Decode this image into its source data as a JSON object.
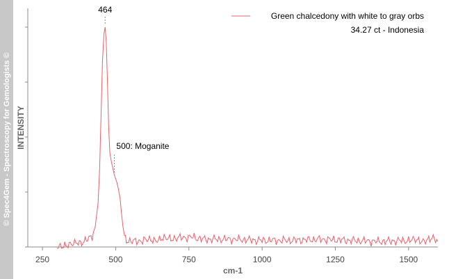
{
  "watermark": "© Spec4Gem - Spectroscopy for Gemologists ©",
  "chart_data": {
    "type": "line",
    "title": "",
    "xlabel": "cm-1",
    "ylabel": "INTENSITY",
    "xlim": [
      200,
      1600
    ],
    "ylim": [
      0,
      1
    ],
    "xticks": [
      250,
      500,
      750,
      1000,
      1250,
      1500
    ],
    "yticks": [
      0,
      0.25,
      0.5,
      0.75,
      1.0
    ],
    "ytick_labels_shown": false,
    "grid": false,
    "legend": {
      "placement": "top-right",
      "entries": [
        "Green chalcedony with white to gray orbs",
        "34.27 ct - Indonesia"
      ]
    },
    "series": [
      {
        "name": "Green chalcedony with white to gray orbs",
        "color": "#e8606a",
        "x": [
          300,
          330,
          360,
          380,
          400,
          420,
          430,
          440,
          445,
          450,
          455,
          460,
          464,
          468,
          472,
          476,
          480,
          485,
          490,
          495,
          500,
          505,
          510,
          515,
          520,
          525,
          530,
          540,
          560,
          600,
          650,
          700,
          760,
          800,
          900,
          1000,
          1100,
          1200,
          1300,
          1400,
          1500,
          1550,
          1580,
          1600
        ],
        "y": [
          0.005,
          0.01,
          0.015,
          0.02,
          0.03,
          0.05,
          0.09,
          0.2,
          0.35,
          0.6,
          0.85,
          0.97,
          1.0,
          0.93,
          0.75,
          0.55,
          0.43,
          0.39,
          0.36,
          0.33,
          0.31,
          0.29,
          0.26,
          0.22,
          0.15,
          0.09,
          0.05,
          0.03,
          0.025,
          0.03,
          0.035,
          0.04,
          0.045,
          0.035,
          0.035,
          0.03,
          0.03,
          0.035,
          0.03,
          0.025,
          0.03,
          0.03,
          0.04,
          0.025
        ]
      }
    ],
    "annotations": [
      {
        "text": "464",
        "x": 464
      },
      {
        "text": "500: Moganite",
        "x": 500
      }
    ]
  }
}
